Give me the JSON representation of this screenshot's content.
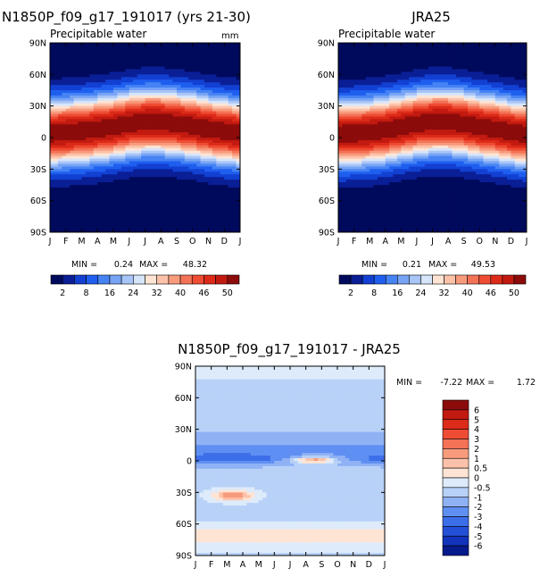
{
  "chart_data": [
    {
      "id": "model",
      "type": "heatmap",
      "title": "N1850P_f09_g17_191017 (yrs 21-30)",
      "subtitle": "Precipitable water",
      "units": "mm",
      "x_ticks": [
        "J",
        "F",
        "M",
        "A",
        "M",
        "J",
        "J",
        "A",
        "S",
        "O",
        "N",
        "D",
        "J"
      ],
      "y_ticks": [
        "90N",
        "60N",
        "30N",
        "0",
        "30S",
        "60S",
        "90S"
      ],
      "y_range": [
        -90,
        90
      ],
      "min_label": "MIN =",
      "min_value": "0.24",
      "max_label": "MAX =",
      "max_value": "48.32",
      "field_max": 48.32,
      "peak_lat": [
        4,
        5,
        6,
        8,
        10,
        13,
        15,
        15,
        13,
        11,
        8,
        6,
        4
      ],
      "colorbar": {
        "labels": [
          "2",
          "8",
          "16",
          "24",
          "32",
          "40",
          "46",
          "50"
        ],
        "colors": [
          "#000a5c",
          "#0a1e96",
          "#1240d2",
          "#1f5fef",
          "#4683f4",
          "#77a4f4",
          "#a8c5f7",
          "#d7e5fa",
          "#ffe4d4",
          "#fcc2a9",
          "#f89b7d",
          "#f47257",
          "#ee4c33",
          "#dd2b19",
          "#c21a10",
          "#8c0b0b"
        ]
      }
    },
    {
      "id": "obs",
      "type": "heatmap",
      "title": "JRA25",
      "subtitle": "Precipitable water",
      "units": "",
      "x_ticks": [
        "J",
        "F",
        "M",
        "A",
        "M",
        "J",
        "J",
        "A",
        "S",
        "O",
        "N",
        "D",
        "J"
      ],
      "y_ticks": [
        "90N",
        "60N",
        "30N",
        "0",
        "30S",
        "60S",
        "90S"
      ],
      "y_range": [
        -90,
        90
      ],
      "min_label": "MIN =",
      "min_value": "0.21",
      "max_label": "MAX =",
      "max_value": "49.53",
      "field_max": 49.53,
      "peak_lat": [
        3,
        4,
        5,
        7,
        10,
        13,
        15,
        15,
        13,
        10,
        8,
        5,
        3
      ],
      "colorbar": {
        "labels": [
          "2",
          "8",
          "16",
          "24",
          "32",
          "40",
          "46",
          "50"
        ],
        "colors": [
          "#000a5c",
          "#0a1e96",
          "#1240d2",
          "#1f5fef",
          "#4683f4",
          "#77a4f4",
          "#a8c5f7",
          "#d7e5fa",
          "#ffe4d4",
          "#fcc2a9",
          "#f89b7d",
          "#f47257",
          "#ee4c33",
          "#dd2b19",
          "#c21a10",
          "#8c0b0b"
        ]
      }
    },
    {
      "id": "diff",
      "type": "heatmap",
      "title": "N1850P_f09_g17_191017 - JRA25",
      "x_ticks": [
        "J",
        "F",
        "M",
        "A",
        "M",
        "J",
        "J",
        "A",
        "S",
        "O",
        "N",
        "D",
        "J"
      ],
      "y_ticks": [
        "90N",
        "60N",
        "30N",
        "0",
        "30S",
        "60S",
        "90S"
      ],
      "y_range": [
        -90,
        90
      ],
      "min_label": "MIN =",
      "min_value": "-7.22",
      "max_label": "MAX =",
      "max_value": "1.72",
      "colorbar": {
        "labels": [
          "6",
          "5",
          "4",
          "3",
          "2",
          "1",
          "0.5",
          "0",
          "-0.5",
          "-1",
          "-2",
          "-3",
          "-4",
          "-5",
          "-6"
        ],
        "colors": [
          "#8c0b0b",
          "#c21a10",
          "#dd2b19",
          "#ee4c33",
          "#f47257",
          "#f89b7d",
          "#fcc2a9",
          "#ffe4d4",
          "#ddebfb",
          "#b8d1f7",
          "#8fb2f5",
          "#5f8ff2",
          "#3c6ee9",
          "#2450d8",
          "#1233bb",
          "#071a8c"
        ]
      }
    }
  ]
}
